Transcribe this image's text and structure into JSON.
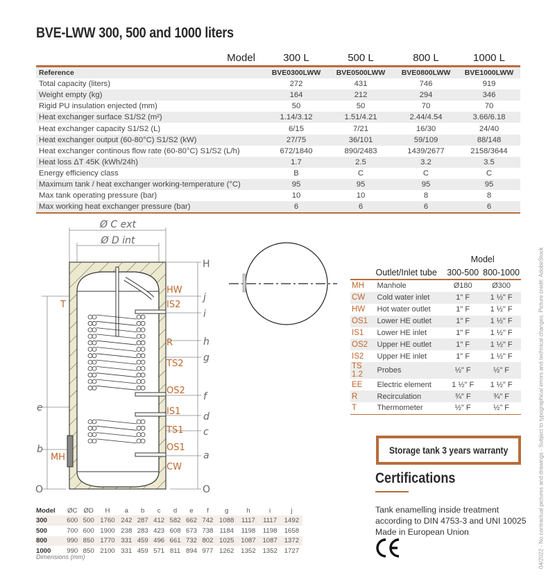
{
  "title": "BVE-LWW 300, 500 and 1000 liters",
  "spec_table": {
    "model_label": "Model",
    "models": [
      "300 L",
      "500 L",
      "800 L",
      "1000 L"
    ],
    "rows": [
      {
        "label": "Reference",
        "values": [
          "BVE0300LWW",
          "BVE0500LWW",
          "BVE0800LWW",
          "BVE1000LWW"
        ]
      },
      {
        "label": "Total capacity (liters)",
        "values": [
          "272",
          "431",
          "746",
          "919"
        ]
      },
      {
        "label": "Weight empty (kg)",
        "values": [
          "164",
          "212",
          "294",
          "346"
        ]
      },
      {
        "label": "Rigid PU insulation enjected (mm)",
        "values": [
          "50",
          "50",
          "70",
          "70"
        ]
      },
      {
        "label": "Heat exchanger surface S1/S2 (m²)",
        "values": [
          "1.14/3.12",
          "1.51/4.21",
          "2.44/4.54",
          "3.66/6.18"
        ]
      },
      {
        "label": "Heat exchanger capacity S1/S2 (L)",
        "values": [
          "6/15",
          "7/21",
          "16/30",
          "24/40"
        ]
      },
      {
        "label": "Heat exchanger output (60-80°C) S1/S2 (kW)",
        "values": [
          "27/75",
          "36/101",
          "59/109",
          "88/148"
        ]
      },
      {
        "label": "Heat exchanger continous flow rate (60-80°C) S1/S2 (L/h)",
        "values": [
          "672/1840",
          "890/2483",
          "1439/2677",
          "2158/3644"
        ]
      },
      {
        "label": "Heat loss ΔT 45K (kWh/24h)",
        "values": [
          "1.7",
          "2.5",
          "3.2",
          "3.5"
        ]
      },
      {
        "label": "Energy efficiency class",
        "values": [
          "B",
          "C",
          "C",
          "C"
        ]
      },
      {
        "label": "Maximum tank / heat exchanger working-temperature (°C)",
        "values": [
          "95",
          "95",
          "95",
          "95"
        ]
      },
      {
        "label": "Max tank operating pressure (bar)",
        "values": [
          "10",
          "10",
          "8",
          "8"
        ]
      },
      {
        "label": "Max working heat exchanger pressure (bar)",
        "values": [
          "6",
          "6",
          "6",
          "6"
        ]
      }
    ]
  },
  "diagram": {
    "c_ext": "Ø C ext",
    "d_int": "Ø D int",
    "connections": {
      "HW": "HW",
      "IS2": "IS2",
      "R": "R",
      "TS2": "TS2",
      "OS2": "OS2",
      "IS1": "IS1",
      "TS1": "TS1",
      "OS1": "OS1",
      "CW": "CW",
      "MH": "MH",
      "T": "T"
    },
    "heights": {
      "H": "H",
      "j": "j",
      "i": "i",
      "h": "h",
      "g": "g",
      "f": "f",
      "d": "d",
      "c": "c",
      "a": "a",
      "e": "e",
      "b": "b",
      "zero": "O"
    }
  },
  "outlet_table": {
    "model_label": "Model",
    "headers": [
      "Outlet/Inlet tube",
      "300-500",
      "800-1000"
    ],
    "rows": [
      {
        "code": "MH",
        "desc": "Manhole",
        "v1": "Ø180",
        "v2": "Ø300"
      },
      {
        "code": "CW",
        "desc": "Cold water inlet",
        "v1": "1\" F",
        "v2": "1 ½\" F"
      },
      {
        "code": "HW",
        "desc": "Hot water outlet",
        "v1": "1\" F",
        "v2": "1 ½\" F"
      },
      {
        "code": "OS1",
        "desc": "Lower HE outlet",
        "v1": "1\" F",
        "v2": "1 ½\" F"
      },
      {
        "code": "IS1",
        "desc": "Lower HE inlet",
        "v1": "1\" F",
        "v2": "1 ½\" F"
      },
      {
        "code": "OS2",
        "desc": "Upper HE outlet",
        "v1": "1\" F",
        "v2": "1 ½\" F"
      },
      {
        "code": "IS2",
        "desc": "Upper HE inlet",
        "v1": "1\" F",
        "v2": "1 ½\" F"
      },
      {
        "code": "TS 1.2",
        "desc": "Probes",
        "v1": "½\" F",
        "v2": "½\" F"
      },
      {
        "code": "EE",
        "desc": "Electric element",
        "v1": "1 ½\" F",
        "v2": "1 ½\" F"
      },
      {
        "code": "R",
        "desc": "Recirculation",
        "v1": "¾\" F",
        "v2": "¾\" F"
      },
      {
        "code": "T",
        "desc": "Thermometer",
        "v1": "½\" F",
        "v2": "½\" F"
      }
    ]
  },
  "dimensions_table": {
    "headers": [
      "Model",
      "ØC",
      "ØD",
      "H",
      "a",
      "b",
      "c",
      "d",
      "e",
      "f",
      "g",
      "h",
      "i",
      "j"
    ],
    "rows": [
      [
        "300",
        "600",
        "500",
        "1760",
        "242",
        "287",
        "412",
        "582",
        "662",
        "742",
        "1088",
        "1117",
        "1117",
        "1492"
      ],
      [
        "500",
        "700",
        "600",
        "1900",
        "238",
        "283",
        "423",
        "608",
        "673",
        "738",
        "1184",
        "1198",
        "1198",
        "1658"
      ],
      [
        "800",
        "990",
        "850",
        "1770",
        "331",
        "459",
        "496",
        "661",
        "732",
        "802",
        "1025",
        "1087",
        "1087",
        "1372"
      ],
      [
        "1000",
        "990",
        "850",
        "2100",
        "331",
        "459",
        "571",
        "811",
        "894",
        "977",
        "1262",
        "1352",
        "1352",
        "1727"
      ]
    ],
    "note": "Dimensions (mm)"
  },
  "warranty": "Storage tank 3 years warranty",
  "certifications": {
    "heading": "Certifications",
    "lines": [
      "Tank enamelling inside treatment",
      "according to DIN 4753-3 and UNI 10025",
      "Made in European Union"
    ],
    "mark": "CE"
  },
  "side_note": "04/2022 - No contractual pictures and drawings - Subject to typographical errors and technical changes. Picture credit: AdobeStock",
  "colors": {
    "accent": "#b86d3a",
    "code": "#c0662a",
    "insulation": "#ede9cf",
    "row_alt": "#ececec"
  }
}
